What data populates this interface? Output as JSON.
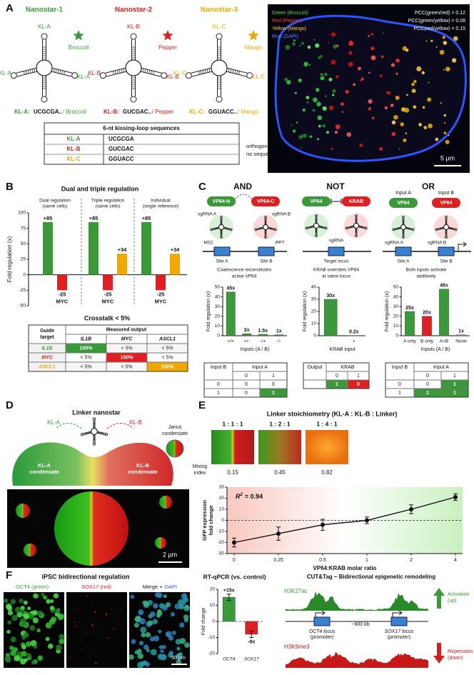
{
  "panel_labels": [
    "A",
    "B",
    "C",
    "D",
    "E",
    "F"
  ],
  "A": {
    "nanostars": [
      {
        "title": "Nanostar-1",
        "loops": [
          "KL-A",
          "KL-A",
          "KL-A"
        ],
        "dye": "Broccoli",
        "key": "KL-A:",
        "sequence": "UCGCGA..",
        "dye_suffix": "/ Broccoli"
      },
      {
        "title": "Nanostar-2",
        "loops": [
          "KL-B",
          "KL-B",
          "KL-B"
        ],
        "dye": "Pepper",
        "key": "KL-B:",
        "sequence": "GUCGAC..",
        "dye_suffix": "/ Pepper"
      },
      {
        "title": "Nanostar-3",
        "loops": [
          "KL-C",
          "KL-C",
          "KL-C"
        ],
        "dye": "Mango",
        "key": "KL-C:",
        "sequence": "GGUACC..",
        "dye_suffix": "/ Mango"
      }
    ],
    "table": {
      "title": "6-nt kissing-loop sequences",
      "rows": [
        [
          "KL-A",
          "UCGCGA"
        ],
        [
          "KL-B",
          "GUCGAC"
        ],
        [
          "KL-C",
          "GGUACC"
        ]
      ]
    },
    "note": [
      "orthogonal;",
      "no sequence homology"
    ],
    "image": {
      "channels": [
        "Green (Broccoli)",
        "Red (Pepper)",
        "Yellow (Mango)",
        "Blue (DAPI)"
      ],
      "pcc": [
        "PCC(green/red) = 0.12",
        "PCC(green/yellow) = 0.08",
        "PCC(red/yellow) = 0.15"
      ],
      "scale_bar": "5 μm"
    }
  },
  "B": {
    "crosstalk": {
      "title": "Crosstalk < 5%",
      "corner": [
        "Guide",
        "target"
      ],
      "measured": "Measured output",
      "columns": [
        "IL1B",
        "MYC",
        "ASCL1"
      ],
      "rows": [
        [
          "IL1B",
          "100%",
          "< 5%",
          "< 5%"
        ],
        [
          "MYC",
          "< 5%",
          "100%",
          "< 5%"
        ],
        [
          "ASCL1",
          "< 5%",
          "< 5%",
          "100%"
        ]
      ],
      "colors": [
        "#3a9a3a",
        "#e02020",
        "#f0a800"
      ]
    }
  },
  "C": {
    "gates": [
      {
        "title": "AND",
        "parts": [
          "VP64-N",
          "VP64-C"
        ],
        "guides": [
          "sgRNA A",
          "sgRNA B"
        ],
        "tags": [
          "MS2",
          "PP7"
        ],
        "sites": [
          "Site A",
          "Site B"
        ],
        "caption": [
          "Coalescence reconstitutes",
          "active VP64"
        ],
        "truth_table": {
          "row_header": "Input B",
          "col_header": "Input A",
          "columns": [
            "0",
            "1"
          ],
          "rows": [
            [
              "0",
              "0",
              "0"
            ],
            [
              "1",
              "0",
              "1"
            ]
          ],
          "fills": [
            [
              null,
              null
            ],
            [
              null,
              "#3a9a3a"
            ]
          ]
        }
      },
      {
        "title": "NOT",
        "parts": [
          "VP64",
          "KRAB"
        ],
        "guides": [
          "sgRNA"
        ],
        "sites": [
          "Target locus"
        ],
        "caption": [
          "KRAB overrides VP64",
          "at same locus"
        ],
        "truth_table": {
          "row_header": "Output",
          "col_header": "KRAB",
          "columns": [
            "0",
            "1"
          ],
          "rows": [
            [
              "1",
              "0"
            ]
          ],
          "fills": [
            [
              "#3a9a3a",
              "#e02020"
            ]
          ]
        }
      },
      {
        "title": "OR",
        "inputs": [
          "Input A",
          "Input B"
        ],
        "parts": [
          "VP64",
          "VP64"
        ],
        "guides": [
          "sgRNA A",
          "sgRNA B"
        ],
        "sites": [
          "Site A",
          "Site B"
        ],
        "caption": [
          "Both inputs activate",
          "additively"
        ],
        "truth_table": {
          "row_header": "Input B",
          "col_header": "Input A",
          "columns": [
            "0",
            "1"
          ],
          "rows": [
            [
              "0",
              "0",
              "1"
            ],
            [
              "1",
              "1",
              "1"
            ]
          ],
          "fills": [
            [
              null,
              "#3a9a3a"
            ],
            [
              "#3a9a3a",
              "#3a9a3a"
            ]
          ]
        }
      }
    ]
  },
  "D": {
    "title": "Linker nanostar",
    "loops": [
      "KL-A",
      "KL-B"
    ],
    "condensates": [
      [
        "KL-A",
        "condensate"
      ],
      [
        "KL-B",
        "condensate"
      ]
    ],
    "janus": [
      "Janus",
      "condensate"
    ],
    "scale_bar": "2 μm"
  },
  "E": {
    "title": "Linker stoichiometry (KL-A : KL-B : Linker)",
    "ratios": [
      "1 : 1 : 1",
      "1 : 2 : 1",
      "1 : 4 : 1"
    ],
    "mixing_label": [
      "Mixing",
      "index"
    ],
    "mixing_values": [
      0.15,
      0.45,
      0.82
    ]
  },
  "F": {
    "title": "iPSC bidirectional regulation",
    "channels": [
      "OCT4 (green)",
      "SOX17 (red)"
    ],
    "merge": "Merge +",
    "dapi": "DAPI",
    "scale_bar": "50 μm",
    "cut_tag": {
      "title": "CUT&Tag – Bidirectional epigenetic remodeling",
      "marks": [
        "H3K27ac",
        "H3K9me3"
      ],
      "activation": [
        "Activation",
        "(up)"
      ],
      "repression": [
        "Repression",
        "(down)"
      ],
      "loci": [
        [
          "OCT4 locus",
          "(promoter)"
        ],
        [
          "SOX17 locus",
          "(promoter)"
        ]
      ],
      "distance": "~800 kb"
    }
  },
  "chart_data": [
    {
      "type": "grouped_bar",
      "title": "Dual and triple regulation",
      "y_label": "Fold regulation (x)",
      "ylim": [
        -50,
        100
      ],
      "yticks": [
        -50,
        -25,
        0,
        25,
        50,
        75,
        100
      ],
      "groups": [
        {
          "title": "Dual regulation",
          "subtitle": "(same cells)",
          "values": [
            85,
            -25
          ],
          "value_labels": [
            "+85",
            "-25"
          ],
          "colors": [
            "#3a9a3a",
            "#e02020"
          ],
          "target": "MYC"
        },
        {
          "title": "Triple regulation",
          "subtitle": "(same cells)",
          "values": [
            85,
            -25,
            34
          ],
          "value_labels": [
            "+85",
            "-25",
            "+34"
          ],
          "colors": [
            "#3a9a3a",
            "#e02020",
            "#f0a800"
          ],
          "target": "MYC"
        },
        {
          "title": "Individual",
          "subtitle": "(single reference)",
          "values": [
            85,
            -25,
            34
          ],
          "value_labels": [
            "+85",
            "-25",
            "+34"
          ],
          "colors": [
            "#3a9a3a",
            "#e02020",
            "#f0a800"
          ],
          "target": "MYC"
        }
      ]
    },
    {
      "type": "bar",
      "y_label": "Fold regulation (x)",
      "x_label": "Inputs (A / B)",
      "categories": [
        "+/+",
        "+/-",
        "-/+",
        "-/-"
      ],
      "values": [
        45,
        2,
        1.5,
        1
      ],
      "value_labels": [
        "45x",
        "2x",
        "1.5x",
        "1x"
      ],
      "colors": [
        "#3a9a3a",
        "#3a9a3a",
        "#3a9a3a",
        "#3a9a3a"
      ],
      "ylim": [
        0,
        50
      ],
      "yticks": [
        0,
        10,
        20,
        30,
        40,
        50
      ]
    },
    {
      "type": "bar",
      "y_label": "Fold regulation (x)",
      "x_label": "KRAB input",
      "categories": [
        "-",
        "+"
      ],
      "values": [
        30,
        0.2
      ],
      "value_labels": [
        "30x",
        "0.2x"
      ],
      "colors": [
        "#3a9a3a",
        "#e02020"
      ],
      "ylim": [
        0,
        40
      ],
      "yticks": [
        0,
        10,
        20,
        30,
        40
      ]
    },
    {
      "type": "bar",
      "y_label": "Fold regulation (x)",
      "x_label": "Inputs (A / B)",
      "categories": [
        "A only",
        "B only",
        "A+B",
        "None"
      ],
      "values": [
        25,
        20,
        48,
        1
      ],
      "value_labels": [
        "25x",
        "20x",
        "48x",
        "1x"
      ],
      "colors": [
        "#3a9a3a",
        "#e02020",
        "#3a9a3a",
        "#999999"
      ],
      "ylim": [
        0,
        50
      ],
      "yticks": [
        0,
        10,
        20,
        30,
        40,
        50
      ]
    },
    {
      "type": "line",
      "y_label": [
        "GFP expression",
        "fold change"
      ],
      "x_label": "VP64:KRAB molar ratio",
      "categories": [
        "0",
        "0.25",
        "0.5",
        "1",
        "2",
        "4"
      ],
      "values": [
        -20,
        -12,
        -4,
        0,
        10,
        21
      ],
      "errors": [
        4,
        6,
        5,
        3,
        4,
        3
      ],
      "color": "#111111",
      "ylim": [
        -30,
        30
      ],
      "yticks": [
        -30,
        -20,
        -10,
        0,
        10,
        20,
        30
      ],
      "annotation": {
        "symbol": "R",
        "exponent": "2",
        "text": "= 0.94"
      }
    },
    {
      "type": "bar",
      "title": "RT-qPCR (vs. control)",
      "y_label": "Fold change",
      "categories": [
        "OCT4",
        "SOX17"
      ],
      "values": [
        15,
        -8
      ],
      "value_labels": [
        "+15x",
        "-8x"
      ],
      "errors": [
        2,
        2
      ],
      "colors": [
        "#3a9a3a",
        "#e02020"
      ],
      "ylim": [
        -20,
        20
      ],
      "yticks": [
        -20,
        -10,
        0,
        10,
        20
      ]
    }
  ]
}
